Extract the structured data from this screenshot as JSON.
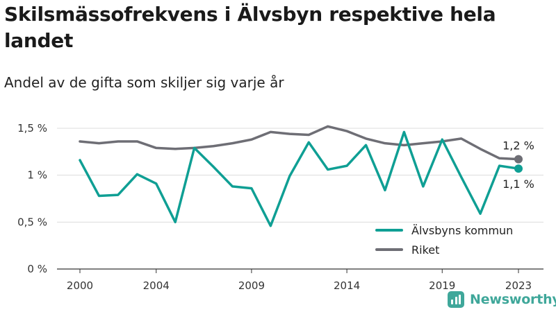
{
  "title": "Skilsmässofrekvens i Älvsbyn respektive hela landet",
  "subtitle": "Andel av de gifta som skiljer sig varje år",
  "brand": {
    "name": "Newsworthy",
    "icon": "bar-chart-icon"
  },
  "colors": {
    "alvsbyn": "#0f9f94",
    "riket": "#6e6e75",
    "grid": "#dcdcdc",
    "brand": "#3fa79a"
  },
  "chart_data": {
    "type": "line",
    "x": [
      2000,
      2001,
      2002,
      2003,
      2004,
      2005,
      2006,
      2007,
      2008,
      2009,
      2010,
      2011,
      2012,
      2013,
      2014,
      2015,
      2016,
      2017,
      2018,
      2019,
      2020,
      2021,
      2022,
      2023
    ],
    "xticks": [
      2000,
      2004,
      2009,
      2014,
      2019,
      2023
    ],
    "xtick_labels": [
      "2000",
      "2004",
      "2009",
      "2014",
      "2019",
      "2023"
    ],
    "ylim": [
      0,
      1.5
    ],
    "yticks": [
      0,
      0.5,
      1,
      1.5
    ],
    "ytick_labels": [
      "0 %",
      "0,5 %",
      "1 %",
      "1,5 %"
    ],
    "grid": true,
    "legend_position": "bottom-right",
    "series": [
      {
        "name": "Älvsbyns kommun",
        "values": [
          1.16,
          0.78,
          0.79,
          1.01,
          0.91,
          0.5,
          1.29,
          1.09,
          0.88,
          0.86,
          0.46,
          0.99,
          1.35,
          1.06,
          1.1,
          1.32,
          0.84,
          1.46,
          0.88,
          1.38,
          0.98,
          0.59,
          1.1,
          1.07
        ],
        "end_label": "1,1 %"
      },
      {
        "name": "Riket",
        "values": [
          1.36,
          1.34,
          1.36,
          1.36,
          1.29,
          1.28,
          1.29,
          1.31,
          1.34,
          1.38,
          1.46,
          1.44,
          1.43,
          1.52,
          1.47,
          1.39,
          1.34,
          1.32,
          1.34,
          1.36,
          1.39,
          1.28,
          1.18,
          1.17
        ],
        "end_label": "1,2 %"
      }
    ]
  }
}
